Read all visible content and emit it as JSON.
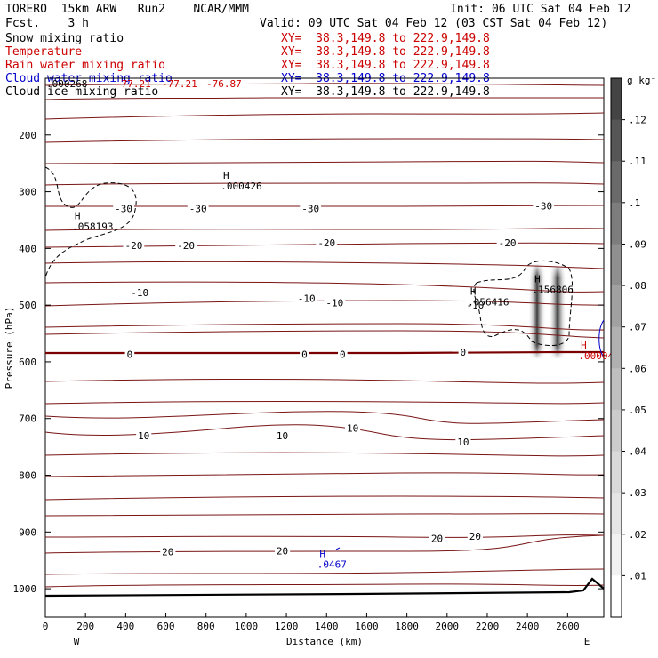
{
  "header": {
    "model": "TORERO  15km ARW   Run2    NCAR/MMM",
    "init": "Init: 06 UTC Sat 04 Feb 12",
    "fcst": "Fcst.    3 h",
    "valid": "Valid: 09 UTC Sat 04 Feb 12 (03 CST Sat 04 Feb 12)"
  },
  "legend": [
    {
      "label": "Snow mixing ratio",
      "color": "#000000",
      "xy": "XY=  38.3,149.8 to 222.9,149.8",
      "xy_color": "#cc0000"
    },
    {
      "label": "Temperature",
      "color": "#cc0000",
      "xy": "XY=  38.3,149.8 to 222.9,149.8",
      "xy_color": "#cc0000"
    },
    {
      "label": "Rain water mixing ratio",
      "color": "#cc0000",
      "xy": "XY=  38.3,149.8 to 222.9,149.8",
      "xy_color": "#cc0000"
    },
    {
      "label": "Cloud water mixing ratio",
      "color": "#0000cc",
      "xy": "XY=  38.3,149.8 to 222.9,149.8",
      "xy_color": "#0000cc"
    },
    {
      "label": "Cloud ice mixing ratio",
      "color": "#000000",
      "xy": "XY=  38.3,149.8 to 222.9,149.8",
      "xy_color": "#000000"
    }
  ],
  "chart_data": {
    "type": "contour cross-section",
    "xlabel": "Distance (km)",
    "ylabel": "Pressure (hPa)",
    "xlim": [
      0,
      2780
    ],
    "ylim": [
      1050,
      100
    ],
    "x_ticks": [
      0,
      200,
      400,
      600,
      800,
      1000,
      1200,
      1400,
      1600,
      1800,
      2000,
      2200,
      2400,
      2600
    ],
    "y_ticks": [
      200,
      300,
      400,
      500,
      600,
      700,
      800,
      900,
      1000
    ],
    "x_end_labels": {
      "left": "W",
      "right": "E"
    },
    "colorbar": {
      "unit": "g kg⁻¹",
      "ticks": [
        ".01",
        ".02",
        ".03",
        ".04",
        ".05",
        ".06",
        ".07",
        ".08",
        ".09",
        ".1",
        ".11",
        ".12"
      ],
      "colors": [
        "#ffffff",
        "#f1f1f1",
        "#e5e5e5",
        "#d9d9d9",
        "#cccccc",
        "#bfbfbf",
        "#b0b0b0",
        "#a1a1a1",
        "#8f8f8f",
        "#7d7d7d",
        "#6a6a6a",
        "#565656",
        "#444444"
      ]
    },
    "temperature_contours": [
      {
        "value": -30,
        "labels": [
          {
            "x": 390,
            "p": 330
          },
          {
            "x": 760,
            "p": 330
          },
          {
            "x": 1320,
            "p": 330
          },
          {
            "x": 2480,
            "p": 325
          }
        ]
      },
      {
        "value": -20,
        "labels": [
          {
            "x": 440,
            "p": 395
          },
          {
            "x": 700,
            "p": 395
          },
          {
            "x": 1400,
            "p": 390
          },
          {
            "x": 2300,
            "p": 390
          }
        ]
      },
      {
        "value": -10,
        "labels": [
          {
            "x": 470,
            "p": 478
          },
          {
            "x": 1300,
            "p": 488
          },
          {
            "x": 1440,
            "p": 496
          },
          {
            "x": 2140,
            "p": 500
          }
        ]
      },
      {
        "value": 0,
        "labels": [
          {
            "x": 420,
            "p": 587
          },
          {
            "x": 1290,
            "p": 587
          },
          {
            "x": 1480,
            "p": 587
          },
          {
            "x": 2080,
            "p": 583
          }
        ]
      },
      {
        "value": 10,
        "labels": [
          {
            "x": 490,
            "p": 730
          },
          {
            "x": 1180,
            "p": 730
          },
          {
            "x": 1530,
            "p": 717
          },
          {
            "x": 2080,
            "p": 741
          }
        ]
      },
      {
        "value": 20,
        "labels": [
          {
            "x": 610,
            "p": 935
          },
          {
            "x": 1180,
            "p": 933
          },
          {
            "x": 1950,
            "p": 911
          },
          {
            "x": 2140,
            "p": 907
          }
        ]
      }
    ],
    "annotations": [
      {
        "text": "H",
        "value": ".000426",
        "x": 900,
        "p": 280,
        "color": "#000000"
      },
      {
        "text": "H",
        "value": ".058193",
        "x": 160,
        "p": 352,
        "color": "#000000"
      },
      {
        "text": "H",
        "value": ".156806",
        "x": 2450,
        "p": 463,
        "color": "#000000"
      },
      {
        "text": "H",
        "value": ".056416",
        "x": 2130,
        "p": 485,
        "color": "#000000"
      },
      {
        "text": "H",
        "value": ".00004",
        "x": 2680,
        "p": 580,
        "color": "#cc0000"
      },
      {
        "text": "H",
        "value": ".0467",
        "x": 1380,
        "p": 947,
        "color": "#0000cc"
      }
    ],
    "top_labels": [
      ".000268",
      "-77.21",
      "-77.21",
      "-76.87"
    ]
  }
}
